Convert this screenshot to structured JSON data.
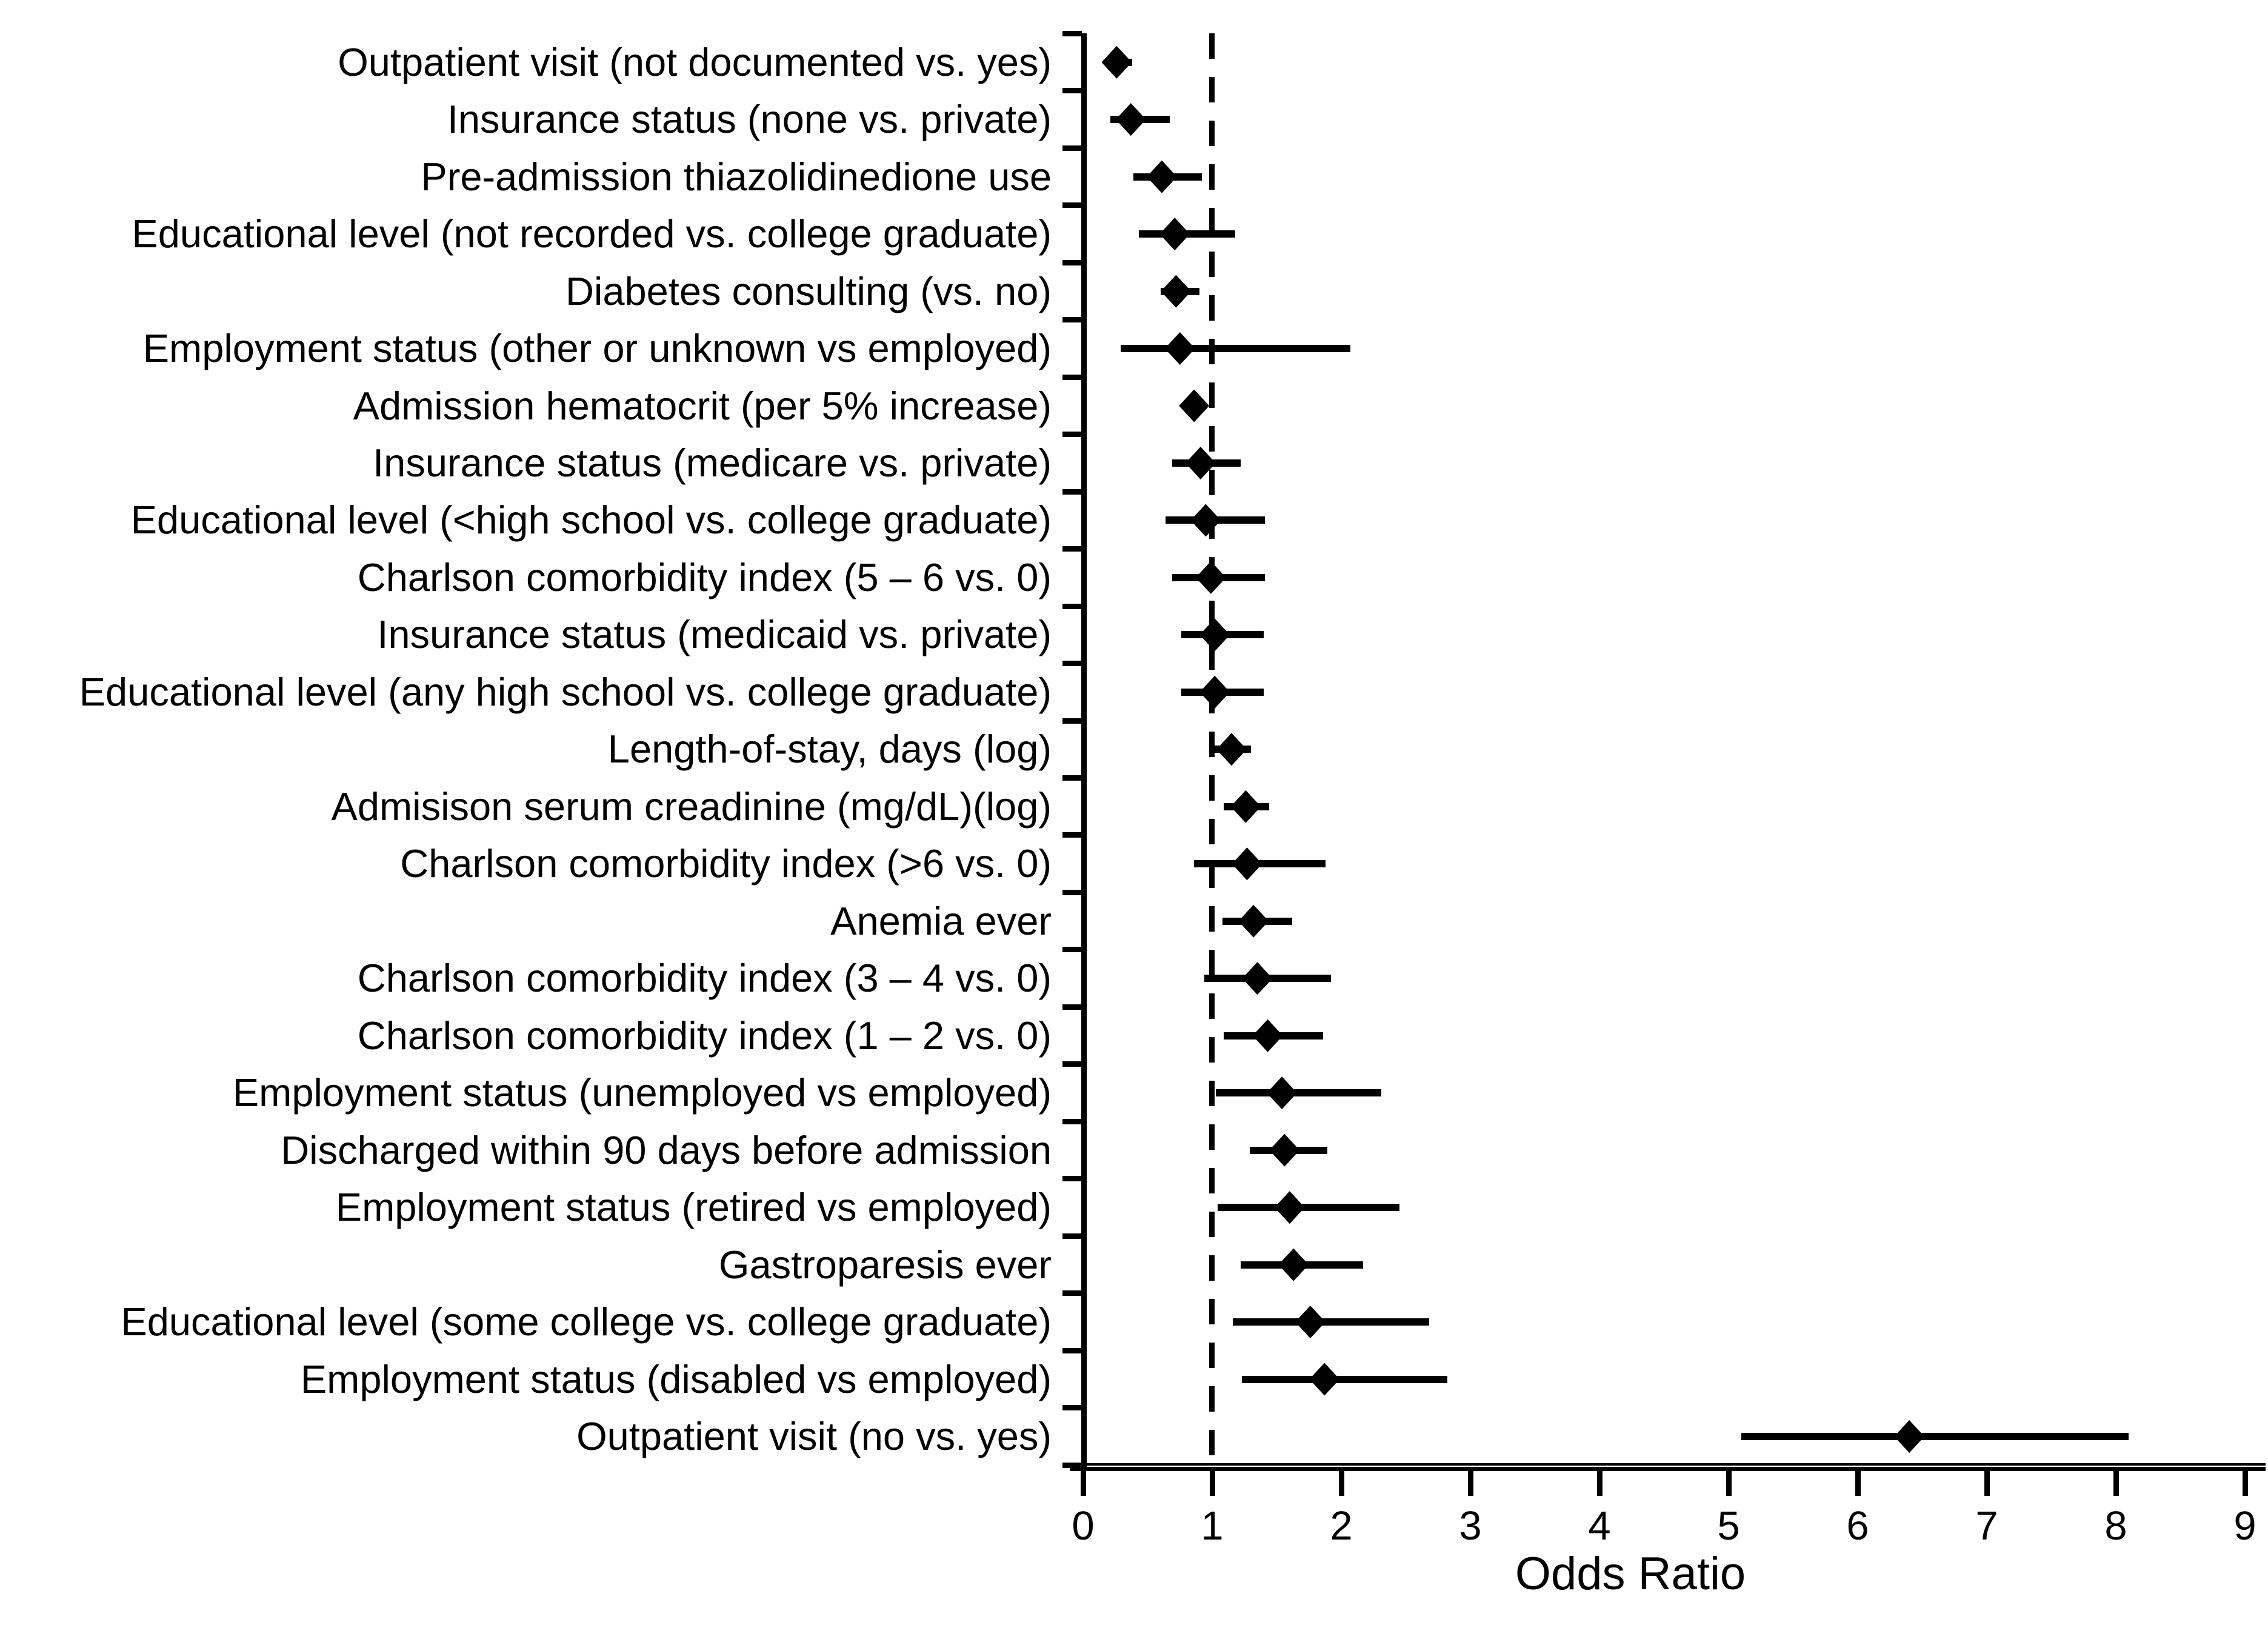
{
  "chart_data": {
    "type": "scatter",
    "variant": "forest-plot",
    "title": "",
    "xlabel": "Odds Ratio",
    "xlim": [
      0,
      9
    ],
    "x_ticks": [
      "0",
      "1",
      "2",
      "3",
      "4",
      "5",
      "6",
      "7",
      "8",
      "9"
    ],
    "reference_line_x": 1,
    "grid": false,
    "legend": "none",
    "marker": "diamond",
    "colors": {
      "marker": "#000000",
      "ci_line": "#000000",
      "axis": "#000000",
      "background": "#ffffff"
    },
    "rows": [
      {
        "label": "Outpatient visit (not documented vs. yes)",
        "or": 0.26,
        "ci_low": 0.18,
        "ci_high": 0.38
      },
      {
        "label": "Insurance status (none vs. private)",
        "or": 0.37,
        "ci_low": 0.21,
        "ci_high": 0.67
      },
      {
        "label": "Pre-admission thiazolidinedione use",
        "or": 0.61,
        "ci_low": 0.39,
        "ci_high": 0.92
      },
      {
        "label": "Educational level (not recorded vs. college graduate)",
        "or": 0.71,
        "ci_low": 0.43,
        "ci_high": 1.18
      },
      {
        "label": "Diabetes consulting (vs. no)",
        "or": 0.72,
        "ci_low": 0.6,
        "ci_high": 0.9
      },
      {
        "label": "Employment status (other or unknown vs employed)",
        "or": 0.75,
        "ci_low": 0.29,
        "ci_high": 2.07
      },
      {
        "label": "Admission hematocrit (per 5% increase)",
        "or": 0.86,
        "ci_low": 0.8,
        "ci_high": 0.93
      },
      {
        "label": "Insurance status (medicare vs. private)",
        "or": 0.91,
        "ci_low": 0.69,
        "ci_high": 1.22
      },
      {
        "label": "Educational level (<high school vs. college graduate)",
        "or": 0.95,
        "ci_low": 0.64,
        "ci_high": 1.41
      },
      {
        "label": "Charlson comorbidity index (5 – 6 vs. 0)",
        "or": 0.99,
        "ci_low": 0.69,
        "ci_high": 1.41
      },
      {
        "label": "Insurance status (medicaid vs. private)",
        "or": 1.02,
        "ci_low": 0.76,
        "ci_high": 1.4
      },
      {
        "label": "Educational level (any high school vs. college graduate)",
        "or": 1.02,
        "ci_low": 0.76,
        "ci_high": 1.4
      },
      {
        "label": "Length-of-stay, days (log)",
        "or": 1.15,
        "ci_low": 1.0,
        "ci_high": 1.3
      },
      {
        "label": "Admisison serum creadinine (mg/dL)(log)",
        "or": 1.26,
        "ci_low": 1.09,
        "ci_high": 1.44
      },
      {
        "label": "Charlson comorbidity index (>6 vs. 0)",
        "or": 1.27,
        "ci_low": 0.86,
        "ci_high": 1.88
      },
      {
        "label": "Anemia ever",
        "or": 1.32,
        "ci_low": 1.08,
        "ci_high": 1.62
      },
      {
        "label": "Charlson comorbidity index (3 – 4 vs. 0)",
        "or": 1.35,
        "ci_low": 0.94,
        "ci_high": 1.92
      },
      {
        "label": "Charlson comorbidity index (1 – 2 vs. 0)",
        "or": 1.43,
        "ci_low": 1.09,
        "ci_high": 1.86
      },
      {
        "label": "Employment status (unemployed vs employed)",
        "or": 1.54,
        "ci_low": 1.03,
        "ci_high": 2.31
      },
      {
        "label": "Discharged within 90 days before admission",
        "or": 1.56,
        "ci_low": 1.29,
        "ci_high": 1.89
      },
      {
        "label": "Employment status (retired vs employed)",
        "or": 1.6,
        "ci_low": 1.04,
        "ci_high": 2.45
      },
      {
        "label": "Gastroparesis ever",
        "or": 1.63,
        "ci_low": 1.22,
        "ci_high": 2.17
      },
      {
        "label": "Educational level (some college vs. college graduate)",
        "or": 1.76,
        "ci_low": 1.16,
        "ci_high": 2.68
      },
      {
        "label": "Employment status (disabled vs employed)",
        "or": 1.87,
        "ci_low": 1.23,
        "ci_high": 2.82
      },
      {
        "label": "Outpatient visit (no vs. yes)",
        "or": 6.4,
        "ci_low": 5.1,
        "ci_high": 8.1
      }
    ]
  }
}
